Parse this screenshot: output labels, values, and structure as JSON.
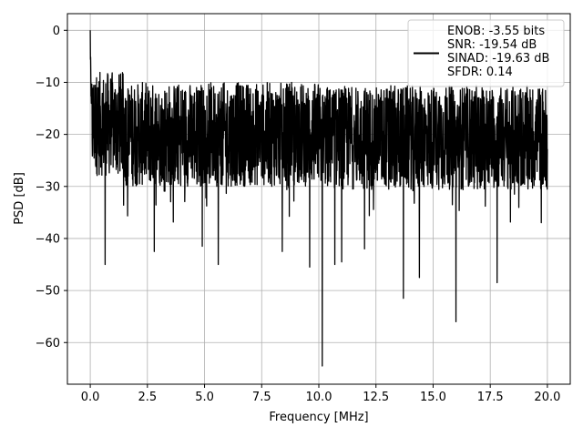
{
  "chart_data": {
    "type": "line",
    "xlabel": "Frequency [MHz]",
    "ylabel": "PSD [dB]",
    "xlim": [
      -1.0,
      21.0
    ],
    "ylim": [
      -68.0,
      3.2
    ],
    "x_ticks": [
      0.0,
      2.5,
      5.0,
      7.5,
      10.0,
      12.5,
      15.0,
      17.5,
      20.0
    ],
    "x_tick_labels": [
      "0.0",
      "2.5",
      "5.0",
      "7.5",
      "10.0",
      "12.5",
      "15.0",
      "17.5",
      "20.0"
    ],
    "y_ticks": [
      0,
      -10,
      -20,
      -30,
      -40,
      -50,
      -60
    ],
    "y_tick_labels": [
      "0",
      "−10",
      "−20",
      "−30",
      "−40",
      "−50",
      "−60"
    ],
    "grid": true,
    "legend_position": "top-right",
    "legend_lines": [
      "ENOB: -3.55 bits",
      "SNR: -19.54 dB",
      "SINAD: -19.63 dB",
      "SFDR: 0.14"
    ],
    "series": [
      {
        "color": "#000000",
        "x_range": [
          0.0,
          20.0
        ],
        "noise_band_db": [
          -30.0,
          -10.0
        ],
        "peak": {
          "x": 0.0,
          "y": 0.0
        },
        "notable_dips": [
          {
            "x": 0.65,
            "y": -45.0
          },
          {
            "x": 2.8,
            "y": -42.5
          },
          {
            "x": 4.9,
            "y": -41.5
          },
          {
            "x": 5.6,
            "y": -45.0
          },
          {
            "x": 8.4,
            "y": -42.5
          },
          {
            "x": 9.6,
            "y": -45.5
          },
          {
            "x": 10.15,
            "y": -64.5
          },
          {
            "x": 10.7,
            "y": -45.0
          },
          {
            "x": 11.0,
            "y": -44.5
          },
          {
            "x": 12.0,
            "y": -42.0
          },
          {
            "x": 13.7,
            "y": -51.5
          },
          {
            "x": 14.4,
            "y": -47.5
          },
          {
            "x": 16.0,
            "y": -56.0
          },
          {
            "x": 17.8,
            "y": -48.5
          }
        ]
      }
    ]
  }
}
